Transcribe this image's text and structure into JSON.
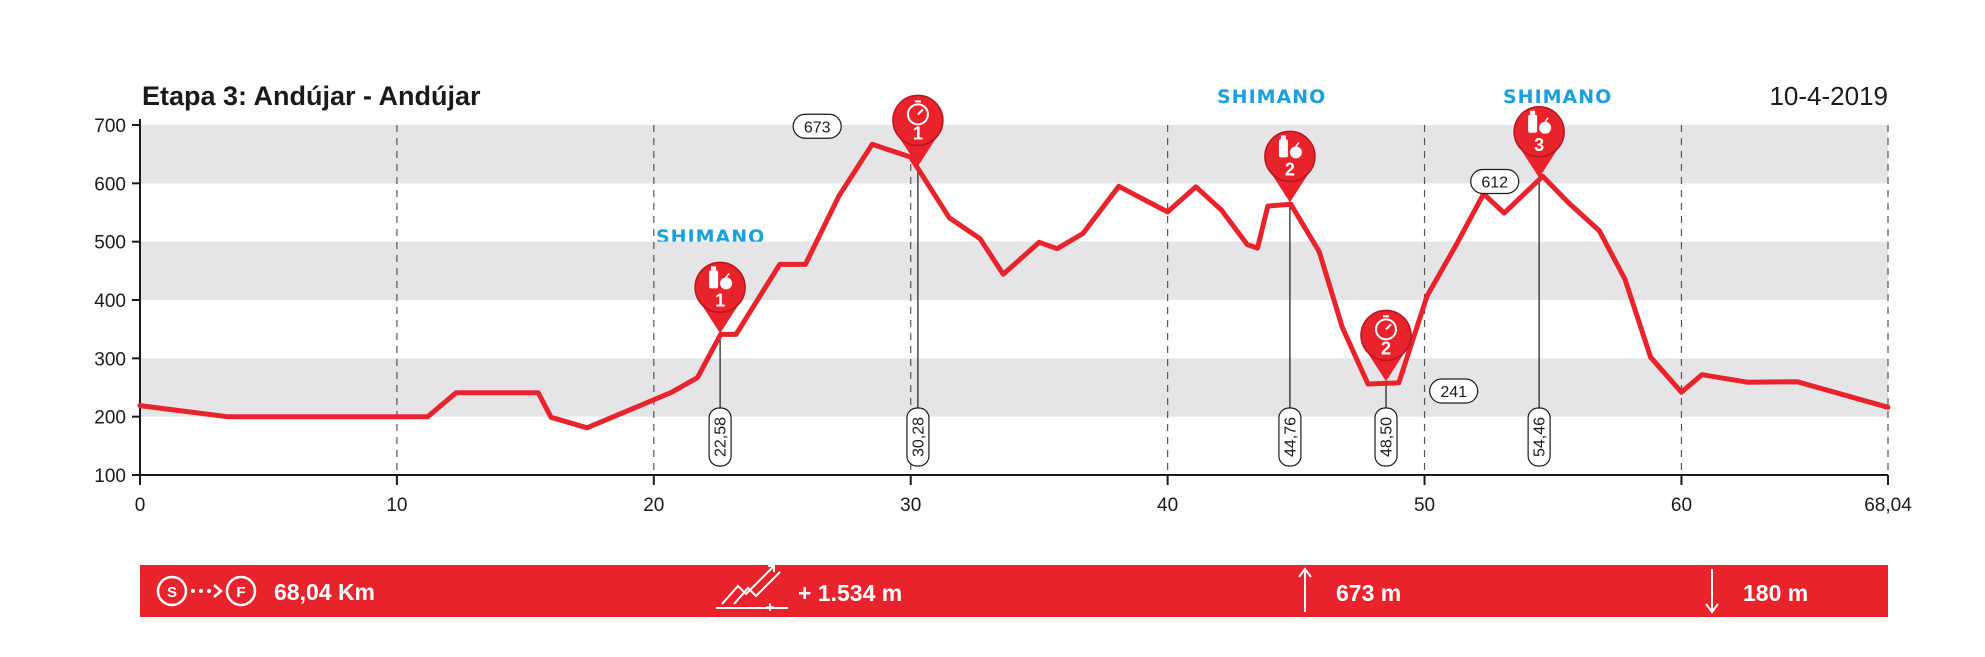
{
  "header": {
    "title": "Etapa 3: Andújar - Andújar",
    "date": "10-4-2019"
  },
  "colors": {
    "profile": "#e8232c",
    "band": "#e5e5e8",
    "sponsor": "#1aa0dc",
    "bar": "#e8232c"
  },
  "sponsors": [
    "SHIMANO",
    "SHIMANO",
    "SHIMANO"
  ],
  "chart_data": {
    "type": "line",
    "title": "Etapa 3: Andújar - Andújar",
    "xlabel": "",
    "ylabel": "",
    "xlim": [
      0,
      68.04
    ],
    "ylim": [
      100,
      700
    ],
    "x_ticks": [
      0,
      10,
      20,
      30,
      40,
      50,
      60,
      68.04
    ],
    "x_tick_labels": [
      "0",
      "10",
      "20",
      "30",
      "40",
      "50",
      "60",
      "68,04"
    ],
    "y_ticks": [
      100,
      200,
      300,
      400,
      500,
      600,
      700
    ],
    "y_tick_labels": [
      "100",
      "200",
      "300",
      "400",
      "500",
      "600",
      "700"
    ],
    "grid": "horizontal bands, vertical dashed lines every 10 km",
    "series": [
      {
        "x": [
          0,
          3.4,
          11.2,
          12.3,
          15.5,
          16,
          17.4,
          20.7,
          21.7,
          22.6,
          23.2,
          24.9,
          25.9,
          27.2,
          28.5,
          30.0,
          31.5,
          32.7,
          33.6,
          35.0,
          35.7,
          36.7,
          38.1,
          40.0,
          41.1,
          42.1,
          43.1,
          43.5,
          43.9,
          44.8,
          45.9,
          46.8,
          47.8,
          49.0,
          50.1,
          51.2,
          52.3,
          53.1,
          54.6,
          55.6,
          56.8,
          57.8,
          58.8,
          60.0,
          60.8,
          62.6,
          64.5,
          68.04
        ],
        "y": [
          219,
          200,
          200,
          241,
          241,
          199,
          181,
          242,
          267,
          341,
          341,
          461,
          461,
          578,
          667,
          645,
          541,
          505,
          444,
          499,
          488,
          514,
          595,
          551,
          594,
          554,
          495,
          489,
          561,
          564,
          483,
          353,
          256,
          258,
          407,
          492,
          582,
          549,
          612,
          567,
          519,
          436,
          302,
          242,
          272,
          259,
          260,
          216
        ]
      }
    ],
    "annotations": {
      "elevation_labels": [
        {
          "km": 28.5,
          "value": "673"
        },
        {
          "km": 48.8,
          "value": "241"
        },
        {
          "km": 53.9,
          "value": "612"
        }
      ],
      "km_markers": [
        {
          "km": 22.58,
          "label": "22,58",
          "type": "feed",
          "number": "1"
        },
        {
          "km": 30.28,
          "label": "30,28",
          "type": "sprint",
          "number": "1"
        },
        {
          "km": 44.76,
          "label": "44,76",
          "type": "feed",
          "number": "2"
        },
        {
          "km": 48.5,
          "label": "48,50",
          "type": "sprint",
          "number": "2"
        },
        {
          "km": 54.46,
          "label": "54,46",
          "type": "feed",
          "number": "3"
        }
      ]
    }
  },
  "summary": {
    "start_letter": "S",
    "finish_letter": "F",
    "distance": "68,04 Km",
    "climb_plus": "+",
    "climb": "+ 1.534 m",
    "max_altitude": "673 m",
    "min_altitude": "180 m"
  }
}
